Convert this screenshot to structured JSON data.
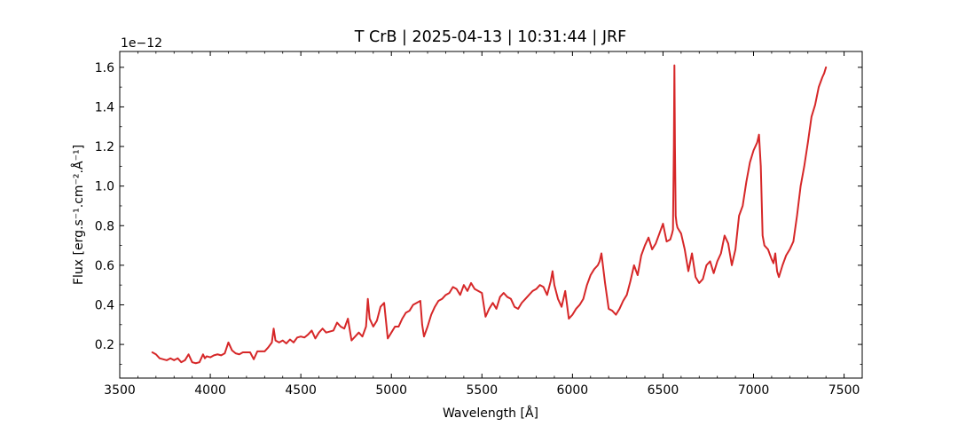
{
  "chart_data": {
    "type": "line",
    "title": "T CrB | 2025-04-13 | 10:31:44 | JRF",
    "xlabel": "Wavelength [Å]",
    "ylabel": "Flux [erg.s⁻¹.cm⁻².Å⁻¹]",
    "y_offset_label": "1e−12",
    "xlim": [
      3500,
      7600
    ],
    "ylim": [
      0.03,
      1.68
    ],
    "y_scale_factor": 1e-12,
    "x_ticks": [
      3500,
      4000,
      4500,
      5000,
      5500,
      6000,
      6500,
      7000,
      7500
    ],
    "x_tick_labels": [
      "3500",
      "4000",
      "4500",
      "5000",
      "5500",
      "6000",
      "6500",
      "7000",
      "7500"
    ],
    "y_ticks": [
      0.2,
      0.4,
      0.6,
      0.8,
      1.0,
      1.2,
      1.4,
      1.6
    ],
    "y_tick_labels": [
      "0.2",
      "0.4",
      "0.6",
      "0.8",
      "1.0",
      "1.2",
      "1.4",
      "1.6"
    ],
    "grid": false,
    "legend": "none",
    "series": [
      {
        "color": "#d62728",
        "x": [
          3680,
          3700,
          3720,
          3740,
          3760,
          3780,
          3800,
          3820,
          3840,
          3860,
          3880,
          3900,
          3920,
          3940,
          3960,
          3970,
          3980,
          4000,
          4020,
          4040,
          4060,
          4080,
          4100,
          4120,
          4140,
          4160,
          4180,
          4200,
          4220,
          4240,
          4260,
          4280,
          4300,
          4320,
          4340,
          4350,
          4360,
          4380,
          4400,
          4420,
          4440,
          4460,
          4480,
          4500,
          4520,
          4540,
          4560,
          4580,
          4600,
          4620,
          4640,
          4660,
          4680,
          4700,
          4720,
          4740,
          4760,
          4780,
          4800,
          4820,
          4840,
          4860,
          4870,
          4880,
          4900,
          4920,
          4940,
          4960,
          4980,
          5000,
          5020,
          5040,
          5060,
          5080,
          5100,
          5120,
          5140,
          5160,
          5170,
          5180,
          5200,
          5220,
          5240,
          5260,
          5280,
          5300,
          5320,
          5340,
          5360,
          5380,
          5400,
          5420,
          5440,
          5460,
          5480,
          5500,
          5520,
          5540,
          5560,
          5580,
          5600,
          5620,
          5640,
          5660,
          5680,
          5700,
          5720,
          5740,
          5760,
          5780,
          5800,
          5820,
          5840,
          5860,
          5880,
          5890,
          5900,
          5920,
          5940,
          5960,
          5980,
          6000,
          6020,
          6040,
          6060,
          6080,
          6100,
          6120,
          6140,
          6150,
          6160,
          6180,
          6200,
          6220,
          6240,
          6260,
          6280,
          6300,
          6320,
          6340,
          6360,
          6380,
          6400,
          6420,
          6440,
          6460,
          6480,
          6500,
          6520,
          6540,
          6550,
          6555,
          6560,
          6563,
          6566,
          6570,
          6575,
          6580,
          6600,
          6620,
          6640,
          6660,
          6680,
          6700,
          6720,
          6740,
          6760,
          6780,
          6800,
          6820,
          6840,
          6860,
          6880,
          6900,
          6920,
          6940,
          6960,
          6980,
          7000,
          7020,
          7030,
          7040,
          7050,
          7060,
          7080,
          7100,
          7110,
          7120,
          7130,
          7140,
          7160,
          7180,
          7200,
          7220,
          7240,
          7260,
          7280,
          7300,
          7320,
          7340,
          7360,
          7380,
          7390,
          7400
        ],
        "y": [
          0.16,
          0.15,
          0.13,
          0.125,
          0.12,
          0.13,
          0.12,
          0.13,
          0.11,
          0.12,
          0.15,
          0.11,
          0.105,
          0.11,
          0.15,
          0.13,
          0.14,
          0.135,
          0.145,
          0.15,
          0.145,
          0.155,
          0.21,
          0.17,
          0.155,
          0.15,
          0.16,
          0.16,
          0.16,
          0.125,
          0.165,
          0.165,
          0.165,
          0.185,
          0.21,
          0.28,
          0.22,
          0.21,
          0.22,
          0.205,
          0.225,
          0.21,
          0.235,
          0.24,
          0.235,
          0.25,
          0.27,
          0.23,
          0.26,
          0.28,
          0.26,
          0.265,
          0.27,
          0.31,
          0.29,
          0.28,
          0.33,
          0.22,
          0.24,
          0.26,
          0.24,
          0.29,
          0.43,
          0.33,
          0.29,
          0.32,
          0.39,
          0.41,
          0.23,
          0.26,
          0.29,
          0.29,
          0.33,
          0.36,
          0.37,
          0.4,
          0.41,
          0.42,
          0.3,
          0.24,
          0.29,
          0.35,
          0.39,
          0.42,
          0.43,
          0.45,
          0.46,
          0.49,
          0.48,
          0.45,
          0.5,
          0.47,
          0.51,
          0.48,
          0.47,
          0.46,
          0.34,
          0.38,
          0.41,
          0.38,
          0.44,
          0.46,
          0.44,
          0.43,
          0.39,
          0.38,
          0.41,
          0.43,
          0.45,
          0.47,
          0.48,
          0.5,
          0.49,
          0.45,
          0.52,
          0.57,
          0.5,
          0.43,
          0.39,
          0.47,
          0.33,
          0.35,
          0.38,
          0.4,
          0.43,
          0.5,
          0.55,
          0.58,
          0.6,
          0.62,
          0.66,
          0.51,
          0.38,
          0.37,
          0.35,
          0.38,
          0.42,
          0.45,
          0.52,
          0.6,
          0.55,
          0.65,
          0.7,
          0.74,
          0.68,
          0.71,
          0.76,
          0.81,
          0.72,
          0.73,
          0.76,
          0.78,
          1.2,
          1.61,
          1.2,
          0.85,
          0.81,
          0.79,
          0.76,
          0.68,
          0.57,
          0.66,
          0.54,
          0.51,
          0.53,
          0.6,
          0.62,
          0.56,
          0.62,
          0.66,
          0.75,
          0.71,
          0.6,
          0.68,
          0.85,
          0.9,
          1.02,
          1.12,
          1.18,
          1.22,
          1.26,
          1.1,
          0.75,
          0.7,
          0.68,
          0.63,
          0.61,
          0.66,
          0.57,
          0.54,
          0.6,
          0.65,
          0.68,
          0.72,
          0.85,
          1.0,
          1.1,
          1.22,
          1.35,
          1.41,
          1.5,
          1.55,
          1.57,
          1.6
        ]
      }
    ]
  }
}
